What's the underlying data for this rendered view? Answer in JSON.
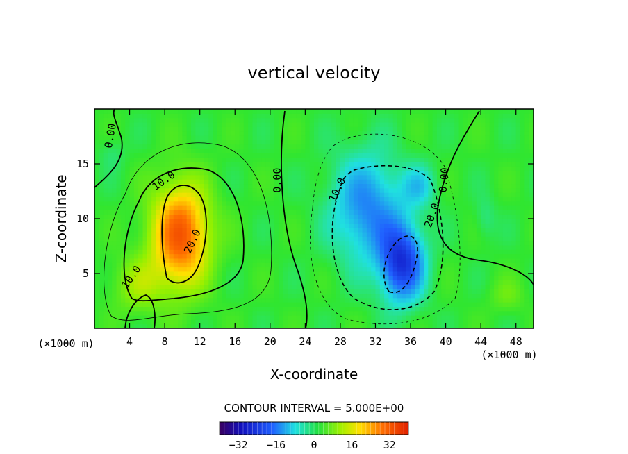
{
  "chart_data": {
    "type": "heatmap",
    "title": "vertical velocity",
    "xlabel": "X-coordinate",
    "ylabel": "Z-coordinate",
    "x_unit": "(×1000 m)",
    "y_unit": "(×1000 m)",
    "xlim": [
      0,
      50
    ],
    "ylim": [
      0,
      20
    ],
    "x_ticks": [
      4,
      8,
      12,
      16,
      20,
      24,
      28,
      32,
      36,
      40,
      44,
      48
    ],
    "y_ticks": [
      5,
      10,
      15
    ],
    "contour_interval_label": "CONTOUR INTERVAL = 5.000E+00",
    "contour_labels": [
      {
        "text": "0.00",
        "x": 2.2,
        "y": 17.5,
        "angle": -80
      },
      {
        "text": "10.0",
        "x": 8.1,
        "y": 13.2,
        "angle": -35
      },
      {
        "text": "20.0",
        "x": 11.5,
        "y": 7.8,
        "angle": -65
      },
      {
        "text": "10.0",
        "x": 4.5,
        "y": 4.5,
        "angle": -55
      },
      {
        "text": "0.00",
        "x": 21.2,
        "y": 13.5,
        "angle": -90
      },
      {
        "text": "10.0",
        "x": 28.0,
        "y": 12.5,
        "angle": -65
      },
      {
        "text": "20.0",
        "x": 38.8,
        "y": 10.2,
        "angle": -70
      },
      {
        "text": "0.00",
        "x": 40.2,
        "y": 13.5,
        "angle": -85
      }
    ],
    "colorbar": {
      "range": [
        -40,
        40
      ],
      "ticks": [
        -32,
        -16,
        0,
        16,
        32
      ],
      "tick_labels": [
        "−32",
        "−16",
        "0",
        "16",
        "32"
      ]
    },
    "field_features": [
      {
        "sign": "positive",
        "x": 9.5,
        "y": 8.5,
        "peak": 30
      },
      {
        "sign": "negative",
        "x": 35,
        "y": 6,
        "peak": -25
      },
      {
        "sign": "negative",
        "x": 31,
        "y": 12,
        "peak": -14
      }
    ]
  }
}
